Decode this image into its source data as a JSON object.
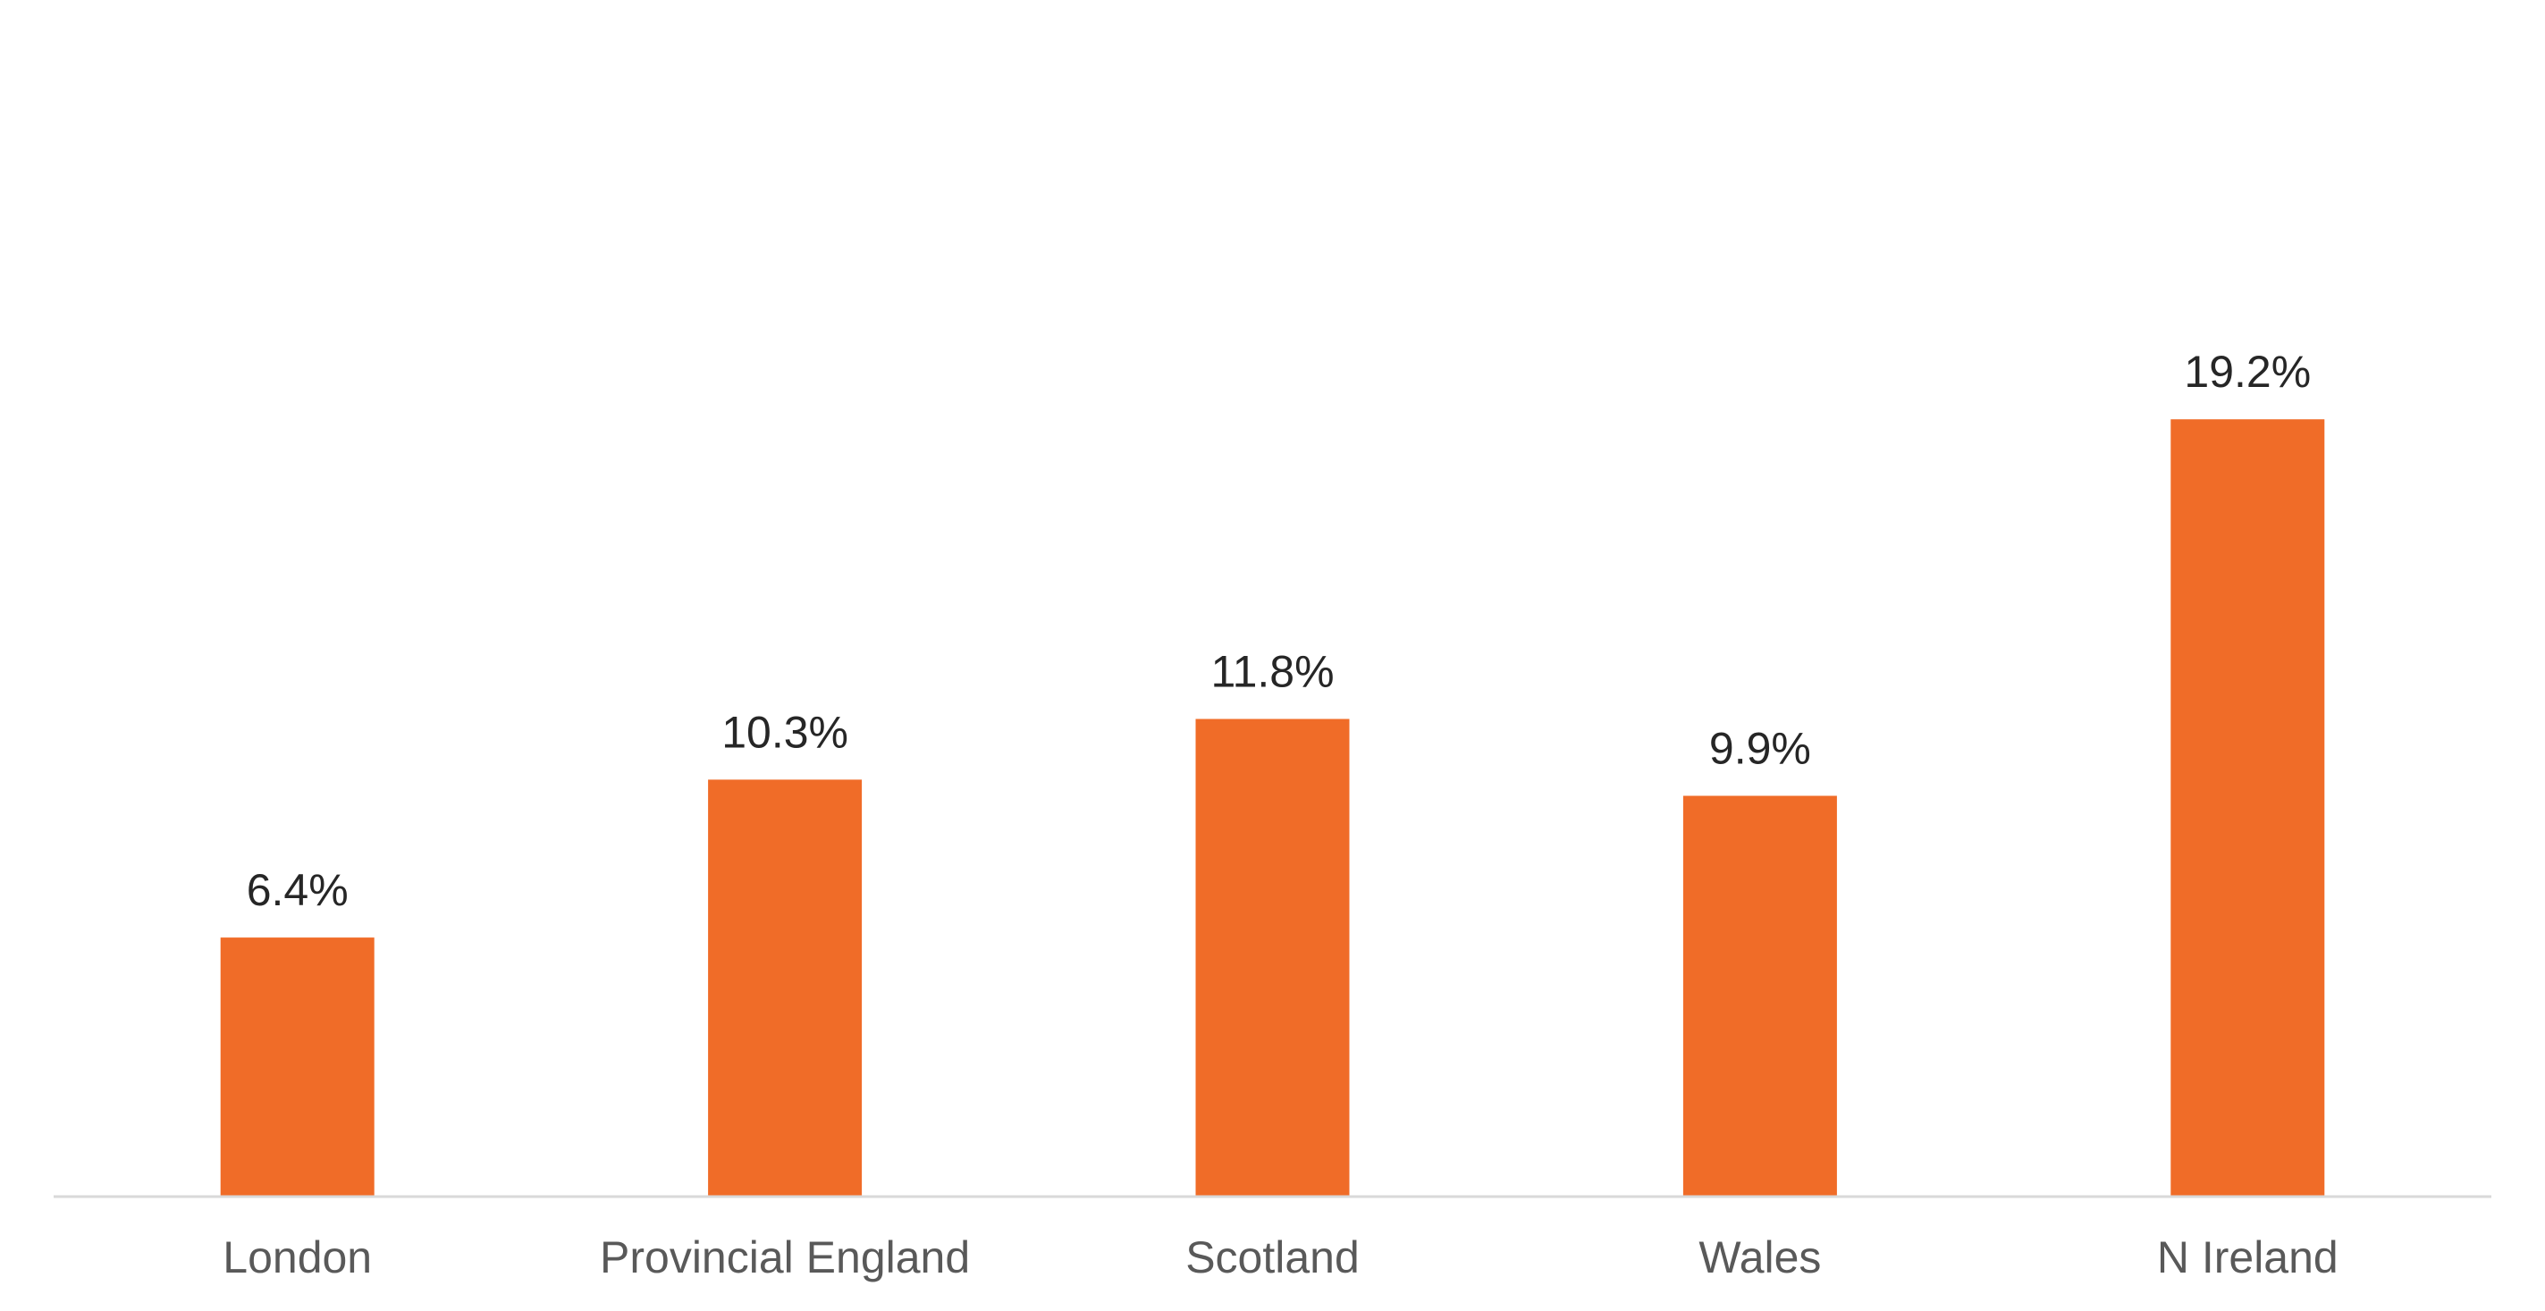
{
  "chart_data": {
    "type": "bar",
    "categories": [
      "London",
      "Provincial England",
      "Scotland",
      "Wales",
      "N Ireland"
    ],
    "values": [
      6.4,
      10.3,
      11.8,
      9.9,
      19.2
    ],
    "data_labels": [
      "6.4%",
      "10.3%",
      "11.8%",
      "9.9%",
      "19.2%"
    ],
    "title": "",
    "xlabel": "",
    "ylabel": "",
    "ylim": [
      0,
      30
    ],
    "grid": false,
    "legend": "none",
    "bar_color": "#F06C28",
    "axis_color": "#D9D9D9"
  }
}
